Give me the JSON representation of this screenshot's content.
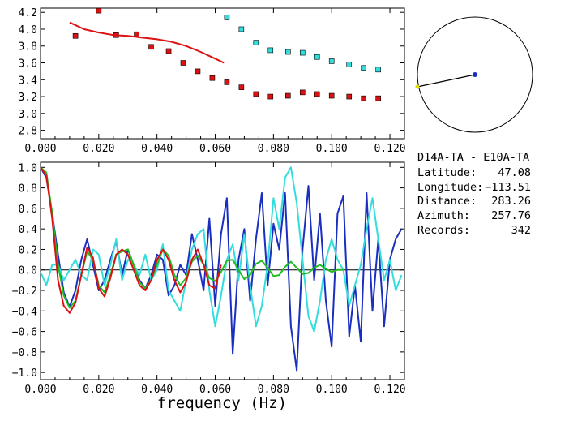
{
  "chart_data": [
    {
      "type": "scatter",
      "xlim": [
        0.0,
        0.125
      ],
      "ylim": [
        2.7,
        4.25
      ],
      "x_ticks": [
        "0.000",
        "0.020",
        "0.040",
        "0.060",
        "0.080",
        "0.100",
        "0.120"
      ],
      "y_ticks": [
        "2.8",
        "3.0",
        "3.2",
        "3.4",
        "3.6",
        "3.8",
        "4.0",
        "4.2"
      ],
      "grid": false,
      "series": [
        {
          "kind": "points",
          "color": "#dd1111",
          "x": [
            0.012,
            0.02,
            0.026,
            0.033,
            0.038,
            0.044,
            0.049,
            0.054,
            0.059,
            0.064,
            0.069,
            0.074,
            0.079,
            0.085,
            0.09,
            0.095,
            0.1,
            0.106,
            0.111,
            0.116
          ],
          "y": [
            3.92,
            4.22,
            3.93,
            3.94,
            3.79,
            3.74,
            3.6,
            3.5,
            3.42,
            3.37,
            3.31,
            3.23,
            3.2,
            3.21,
            3.25,
            3.23,
            3.21,
            3.2,
            3.18,
            3.18
          ]
        },
        {
          "kind": "points",
          "color": "#33dddd",
          "x": [
            0.064,
            0.069,
            0.074,
            0.079,
            0.085,
            0.09,
            0.095,
            0.1,
            0.106,
            0.111,
            0.116
          ],
          "y": [
            4.14,
            4.0,
            3.84,
            3.75,
            3.73,
            3.72,
            3.67,
            3.62,
            3.58,
            3.54,
            3.52
          ]
        },
        {
          "kind": "line",
          "color": "#dd1111",
          "x": [
            0.01,
            0.015,
            0.02,
            0.025,
            0.03,
            0.035,
            0.04,
            0.045,
            0.05,
            0.055,
            0.06,
            0.063
          ],
          "y": [
            4.08,
            4.0,
            3.96,
            3.93,
            3.92,
            3.9,
            3.88,
            3.85,
            3.8,
            3.73,
            3.65,
            3.6
          ]
        }
      ]
    },
    {
      "type": "line",
      "xlabel": "frequency (Hz)",
      "xlim": [
        0.0,
        0.125
      ],
      "ylim": [
        -1.07,
        1.05
      ],
      "x_ticks": [
        "0.000",
        "0.020",
        "0.040",
        "0.060",
        "0.080",
        "0.100",
        "0.120"
      ],
      "y_ticks": [
        "1.0",
        "0.8",
        "0.6",
        "0.4",
        "0.2",
        "0.0",
        "−0.2",
        "−0.4",
        "−0.6",
        "−0.8",
        "−1.0"
      ],
      "zero_line": true,
      "series": [
        {
          "color": "#1a2fbf",
          "x": [
            0.0,
            0.002,
            0.004,
            0.006,
            0.008,
            0.01,
            0.012,
            0.014,
            0.016,
            0.018,
            0.02,
            0.022,
            0.024,
            0.026,
            0.028,
            0.03,
            0.032,
            0.034,
            0.036,
            0.038,
            0.04,
            0.042,
            0.044,
            0.046,
            0.048,
            0.05,
            0.052,
            0.054,
            0.056,
            0.058,
            0.06,
            0.062,
            0.064,
            0.066,
            0.068,
            0.07,
            0.072,
            0.074,
            0.076,
            0.078,
            0.08,
            0.082,
            0.084,
            0.086,
            0.088,
            0.09,
            0.092,
            0.094,
            0.096,
            0.098,
            0.1,
            0.102,
            0.104,
            0.106,
            0.108,
            0.11,
            0.112,
            0.114,
            0.116,
            0.118,
            0.12,
            0.122,
            0.124
          ],
          "y": [
            1.0,
            0.9,
            0.55,
            0.15,
            -0.22,
            -0.36,
            -0.2,
            0.1,
            0.3,
            0.05,
            -0.2,
            -0.1,
            0.1,
            0.28,
            -0.05,
            0.2,
            0.05,
            -0.1,
            -0.18,
            -0.05,
            0.15,
            0.1,
            -0.25,
            -0.15,
            0.05,
            -0.05,
            0.35,
            0.1,
            -0.2,
            0.5,
            -0.35,
            0.35,
            0.7,
            -0.82,
            0.1,
            0.4,
            -0.3,
            0.3,
            0.75,
            -0.15,
            0.45,
            0.2,
            0.75,
            -0.55,
            -0.98,
            0.2,
            0.82,
            -0.1,
            0.55,
            -0.3,
            -0.75,
            0.55,
            0.72,
            -0.65,
            -0.15,
            -0.7,
            0.75,
            -0.4,
            0.3,
            -0.55,
            0.1,
            0.3,
            0.4
          ]
        },
        {
          "color": "#33dddd",
          "x": [
            0.0,
            0.002,
            0.004,
            0.006,
            0.008,
            0.01,
            0.012,
            0.014,
            0.016,
            0.018,
            0.02,
            0.022,
            0.024,
            0.026,
            0.028,
            0.03,
            0.032,
            0.034,
            0.036,
            0.038,
            0.04,
            0.042,
            0.044,
            0.046,
            0.048,
            0.05,
            0.052,
            0.054,
            0.056,
            0.058,
            0.06,
            0.062,
            0.064,
            0.066,
            0.068,
            0.07,
            0.072,
            0.074,
            0.076,
            0.078,
            0.08,
            0.082,
            0.084,
            0.086,
            0.088,
            0.09,
            0.092,
            0.094,
            0.096,
            0.098,
            0.1,
            0.102,
            0.104,
            0.106,
            0.108,
            0.11,
            0.112,
            0.114,
            0.116,
            0.118,
            0.12,
            0.122,
            0.124
          ],
          "y": [
            -0.02,
            -0.15,
            0.05,
            0.05,
            -0.1,
            0.0,
            0.1,
            -0.05,
            -0.1,
            0.2,
            0.15,
            -0.15,
            0.05,
            0.3,
            -0.1,
            0.1,
            0.05,
            -0.05,
            0.15,
            -0.1,
            0.0,
            0.25,
            -0.2,
            -0.3,
            -0.4,
            -0.1,
            0.2,
            0.35,
            0.4,
            -0.2,
            -0.55,
            -0.25,
            0.1,
            0.25,
            -0.1,
            0.35,
            -0.15,
            -0.55,
            -0.35,
            0.05,
            0.7,
            0.4,
            0.9,
            1.0,
            0.65,
            0.1,
            -0.45,
            -0.6,
            -0.3,
            0.1,
            0.3,
            0.1,
            0.0,
            -0.35,
            -0.15,
            0.05,
            0.4,
            0.7,
            0.3,
            -0.1,
            0.1,
            -0.2,
            -0.05
          ]
        },
        {
          "color": "#22bb22",
          "x": [
            0.0,
            0.002,
            0.004,
            0.006,
            0.008,
            0.01,
            0.012,
            0.014,
            0.016,
            0.018,
            0.02,
            0.022,
            0.024,
            0.026,
            0.028,
            0.03,
            0.032,
            0.034,
            0.036,
            0.038,
            0.04,
            0.042,
            0.044,
            0.046,
            0.048,
            0.05,
            0.052,
            0.054,
            0.056,
            0.058,
            0.06,
            0.062,
            0.064,
            0.066,
            0.068,
            0.07,
            0.072,
            0.074,
            0.076,
            0.078,
            0.08,
            0.082,
            0.084,
            0.086,
            0.088,
            0.09,
            0.092,
            0.094,
            0.096,
            0.098,
            0.1,
            0.102,
            0.104
          ],
          "y": [
            1.0,
            0.95,
            0.55,
            0.05,
            -0.25,
            -0.37,
            -0.3,
            -0.05,
            0.18,
            0.1,
            -0.15,
            -0.22,
            -0.05,
            0.15,
            0.18,
            0.2,
            0.05,
            -0.12,
            -0.18,
            -0.1,
            0.05,
            0.2,
            0.14,
            -0.05,
            -0.15,
            -0.08,
            0.08,
            0.14,
            0.05,
            -0.08,
            -0.11,
            -0.02,
            0.09,
            0.1,
            0.0,
            -0.09,
            -0.05,
            0.06,
            0.09,
            0.02,
            -0.06,
            -0.05,
            0.03,
            0.08,
            0.02,
            -0.04,
            -0.03,
            0.02,
            0.05,
            0.01,
            -0.02,
            0.0,
            0.0
          ]
        },
        {
          "color": "#dd1111",
          "x": [
            0.0,
            0.002,
            0.004,
            0.006,
            0.008,
            0.01,
            0.012,
            0.014,
            0.016,
            0.018,
            0.02,
            0.022,
            0.024,
            0.026,
            0.028,
            0.03,
            0.032,
            0.034,
            0.036,
            0.038,
            0.04,
            0.042,
            0.044,
            0.046,
            0.048,
            0.05,
            0.052,
            0.054,
            0.056,
            0.058,
            0.06,
            0.062
          ],
          "y": [
            1.0,
            0.92,
            0.5,
            -0.1,
            -0.35,
            -0.42,
            -0.32,
            -0.05,
            0.22,
            0.12,
            -0.18,
            -0.26,
            -0.08,
            0.15,
            0.2,
            0.15,
            0.0,
            -0.15,
            -0.2,
            -0.1,
            0.1,
            0.2,
            0.1,
            -0.1,
            -0.22,
            -0.12,
            0.1,
            0.2,
            0.05,
            -0.15,
            -0.18,
            0.05
          ]
        }
      ]
    }
  ],
  "map": {
    "circle": true,
    "line_color": "#000000",
    "point_a_color": "#1a2fbf",
    "point_b_color": "#dddd00",
    "point_a_label": "",
    "point_b_label": ""
  },
  "info": {
    "title": "D14A-TA  - E10A-TA",
    "rows": [
      {
        "label": "Latitude:",
        "value": "47.08"
      },
      {
        "label": "Longitude:",
        "value": "−113.51"
      },
      {
        "label": "Distance:",
        "value": "283.26"
      },
      {
        "label": "Azimuth:",
        "value": "257.76"
      },
      {
        "label": "Records:",
        "value": "342"
      }
    ]
  }
}
